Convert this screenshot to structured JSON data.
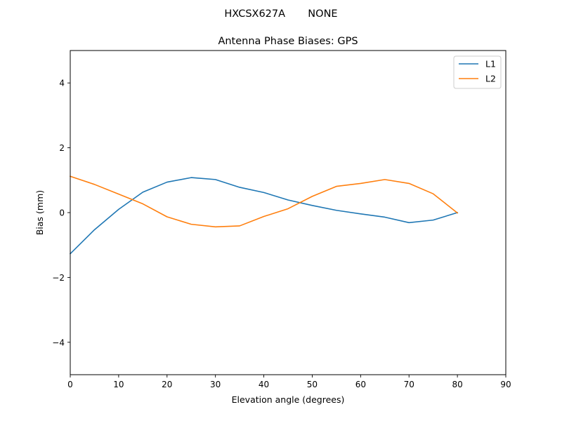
{
  "chart_data": {
    "type": "line",
    "suptitle": "HXCSX627A       NONE",
    "title": "Antenna Phase Biases: GPS",
    "xlabel": "Elevation angle (degrees)",
    "ylabel": "Bias (mm)",
    "xlim": [
      0,
      90
    ],
    "ylim": [
      -5,
      5
    ],
    "xticks": [
      0,
      10,
      20,
      30,
      40,
      50,
      60,
      70,
      80,
      90
    ],
    "yticks": [
      -4,
      -2,
      0,
      2,
      4
    ],
    "ytick_labels": [
      "−4",
      "−2",
      "0",
      "2",
      "4"
    ],
    "grid": false,
    "legend_position": "top-right",
    "x": [
      0,
      5,
      10,
      15,
      20,
      25,
      30,
      35,
      40,
      45,
      50,
      55,
      60,
      65,
      70,
      75,
      80
    ],
    "series": [
      {
        "name": "L1",
        "color": "#1f77b4",
        "values": [
          -1.27,
          -0.53,
          0.1,
          0.63,
          0.94,
          1.08,
          1.02,
          0.78,
          0.62,
          0.39,
          0.22,
          0.07,
          -0.04,
          -0.14,
          -0.31,
          -0.23,
          0.0
        ]
      },
      {
        "name": "L2",
        "color": "#ff7f0e",
        "values": [
          1.12,
          0.87,
          0.57,
          0.27,
          -0.13,
          -0.36,
          -0.44,
          -0.41,
          -0.12,
          0.12,
          0.5,
          0.81,
          0.9,
          1.02,
          0.9,
          0.58,
          -0.01
        ]
      }
    ]
  }
}
